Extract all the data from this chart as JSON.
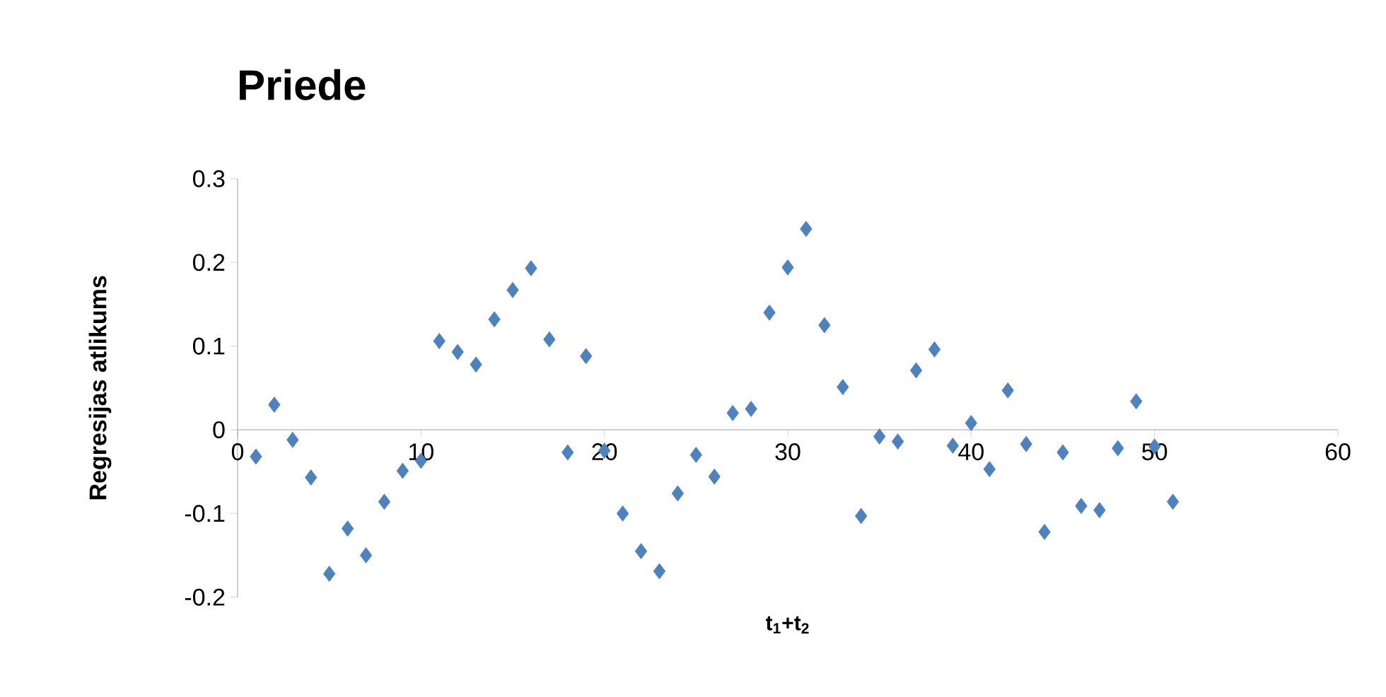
{
  "chart_data": {
    "type": "scatter",
    "title": "Priede",
    "xlabel": "t$_{1}$+t$_{2}$",
    "ylabel": "Regresijas atlikums",
    "xlim": [
      0,
      60
    ],
    "xticks": [
      0,
      10,
      20,
      30,
      40,
      50,
      60
    ],
    "ylim": [
      -0.2,
      0.3
    ],
    "yticks": [
      -0.2,
      -0.1,
      0,
      0.1,
      0.2,
      0.3
    ],
    "marker": "diamond",
    "grid": false,
    "series": [
      {
        "color": "#4f81bd",
        "x": [
          1,
          2,
          3,
          4,
          5,
          6,
          7,
          8,
          9,
          10,
          11,
          12,
          13,
          14,
          15,
          16,
          17,
          18,
          19,
          20,
          21,
          22,
          23,
          24,
          25,
          26,
          27,
          28,
          29,
          30,
          31,
          32,
          33,
          34,
          35,
          36,
          37,
          38,
          39,
          40,
          41,
          42,
          43,
          44,
          45,
          46,
          47,
          48,
          49,
          50,
          51
        ],
        "values": [
          -0.032,
          0.03,
          -0.012,
          -0.057,
          -0.172,
          -0.118,
          -0.15,
          -0.086,
          -0.049,
          -0.037,
          0.106,
          0.093,
          0.078,
          0.132,
          0.167,
          0.193,
          0.108,
          -0.027,
          0.088,
          -0.025,
          -0.1,
          -0.145,
          -0.169,
          -0.076,
          -0.03,
          -0.056,
          0.02,
          0.025,
          0.14,
          0.194,
          0.24,
          0.125,
          0.051,
          -0.103,
          -0.008,
          -0.014,
          0.071,
          0.096,
          -0.019,
          0.008,
          -0.047,
          0.047,
          -0.017,
          -0.122,
          -0.027,
          -0.091,
          -0.096,
          -0.022,
          0.034,
          -0.02,
          -0.086
        ]
      }
    ]
  }
}
